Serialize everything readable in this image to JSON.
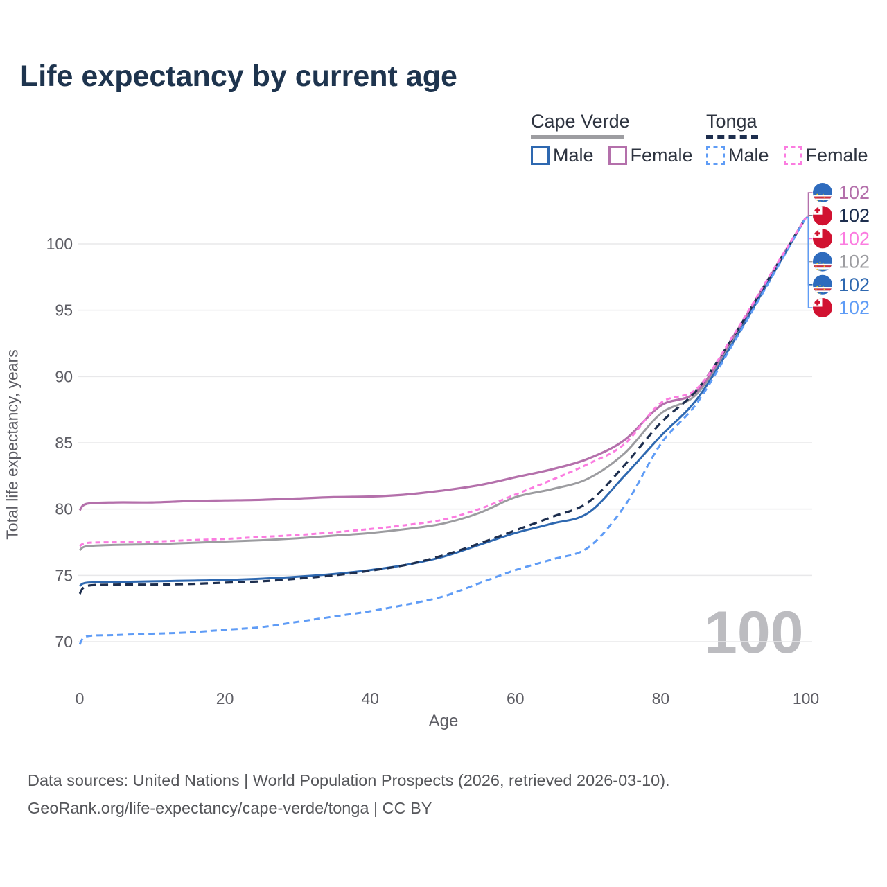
{
  "title": "Life expectancy by current age",
  "watermark": "100",
  "legend": {
    "groups": [
      {
        "name": "Cape Verde",
        "line_style": "solid",
        "underline_color": "#9d9da1",
        "items": [
          {
            "label": "Male",
            "color": "#2e68b0",
            "dashed": false
          },
          {
            "label": "Female",
            "color": "#b470ab",
            "dashed": false
          }
        ]
      },
      {
        "name": "Tonga",
        "line_style": "dashed",
        "underline_color": "#1d2e4e",
        "items": [
          {
            "label": "Male",
            "color": "#5f9cf6",
            "dashed": true
          },
          {
            "label": "Female",
            "color": "#fb7ce0",
            "dashed": true
          }
        ]
      }
    ]
  },
  "sources": [
    "Data sources: United Nations | World Population Prospects (2026, retrieved 2026-03-10).",
    "GeoRank.org/life-expectancy/cape-verde/tonga | CC BY"
  ],
  "chart_data": {
    "type": "line",
    "title": "Life expectancy by current age",
    "xlabel": "Age",
    "ylabel": "Total life expectancy, years",
    "x_ticks": [
      0,
      20,
      40,
      60,
      80,
      100
    ],
    "y_ticks": [
      70,
      75,
      80,
      85,
      90,
      95,
      100
    ],
    "xlim": [
      0,
      100
    ],
    "ylim": [
      68,
      103
    ],
    "grid": "horizontal",
    "legend_position": "top-right",
    "x": [
      0,
      1,
      5,
      10,
      15,
      20,
      25,
      30,
      35,
      40,
      45,
      50,
      55,
      60,
      65,
      70,
      75,
      80,
      85,
      90,
      95,
      100
    ],
    "series": [
      {
        "name": "Cape Verde",
        "country": "Cape Verde",
        "sex": "both",
        "color": "#9c9ca0",
        "dash": null,
        "width": 3,
        "flag": "cape-verde",
        "end_label": "102",
        "end_rank": 3,
        "values": [
          76.9,
          77.2,
          77.3,
          77.35,
          77.45,
          77.55,
          77.65,
          77.8,
          78.0,
          78.2,
          78.5,
          78.9,
          79.7,
          80.9,
          81.5,
          82.3,
          84.2,
          87.2,
          88.7,
          92.9,
          97.4,
          102
        ]
      },
      {
        "name": "Cape Verde Female",
        "country": "Cape Verde",
        "sex": "female",
        "color": "#b470ab",
        "dash": null,
        "width": 3.2,
        "flag": "cape-verde",
        "end_label": "102",
        "end_rank": 0,
        "values": [
          79.9,
          80.4,
          80.5,
          80.5,
          80.6,
          80.65,
          80.7,
          80.8,
          80.9,
          80.95,
          81.1,
          81.4,
          81.8,
          82.4,
          83.0,
          83.8,
          85.2,
          87.8,
          88.9,
          93.0,
          97.5,
          102
        ]
      },
      {
        "name": "Cape Verde Male",
        "country": "Cape Verde",
        "sex": "male",
        "color": "#2e68b0",
        "dash": null,
        "width": 3,
        "flag": "cape-verde",
        "end_label": "102",
        "end_rank": 4,
        "values": [
          74.2,
          74.45,
          74.5,
          74.55,
          74.6,
          74.65,
          74.75,
          74.9,
          75.1,
          75.4,
          75.8,
          76.4,
          77.3,
          78.2,
          78.9,
          79.7,
          82.5,
          85.5,
          88.3,
          92.6,
          97.3,
          102
        ]
      },
      {
        "name": "Tonga",
        "country": "Tonga",
        "sex": "both",
        "color": "#1d2e4e",
        "dash": "11,7",
        "width": 3.2,
        "flag": "tonga",
        "end_label": "102",
        "end_rank": 1,
        "values": [
          73.6,
          74.2,
          74.3,
          74.3,
          74.35,
          74.45,
          74.55,
          74.75,
          75.0,
          75.35,
          75.8,
          76.5,
          77.4,
          78.4,
          79.4,
          80.5,
          83.3,
          86.5,
          89.0,
          93.0,
          97.5,
          102
        ]
      },
      {
        "name": "Tonga Male",
        "country": "Tonga",
        "sex": "male",
        "color": "#5f9cf6",
        "dash": "9,6",
        "width": 3,
        "flag": "tonga",
        "end_label": "102",
        "end_rank": 5,
        "values": [
          69.8,
          70.4,
          70.5,
          70.6,
          70.7,
          70.9,
          71.1,
          71.5,
          71.9,
          72.3,
          72.8,
          73.4,
          74.4,
          75.4,
          76.2,
          77.1,
          80.2,
          84.9,
          88.0,
          92.5,
          97.2,
          102
        ]
      },
      {
        "name": "Tonga Female",
        "country": "Tonga",
        "sex": "female",
        "color": "#fb7ce0",
        "dash": "7,5",
        "width": 3,
        "flag": "tonga",
        "end_label": "102",
        "end_rank": 2,
        "values": [
          77.2,
          77.45,
          77.5,
          77.55,
          77.65,
          77.75,
          77.9,
          78.05,
          78.25,
          78.5,
          78.8,
          79.2,
          80.0,
          81.1,
          82.2,
          83.4,
          84.9,
          88.0,
          89.1,
          93.1,
          97.6,
          102
        ]
      }
    ]
  }
}
